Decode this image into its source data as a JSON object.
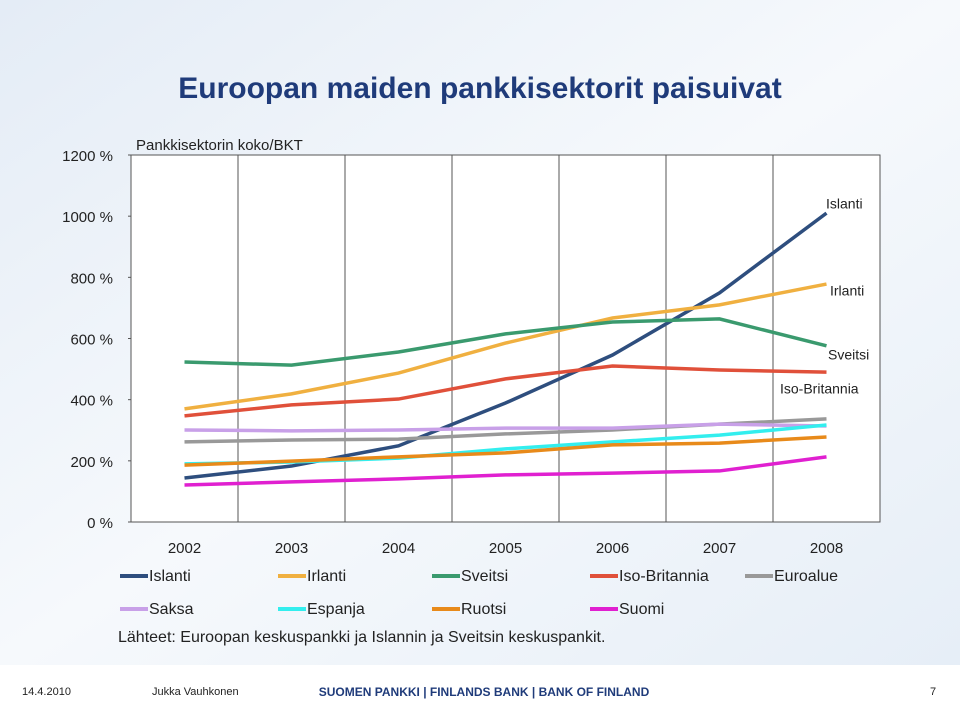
{
  "chart_data": {
    "type": "line",
    "title": "Euroopan maiden pankkisektorit paisuivat",
    "subtitle": "Pankkisektorin koko/BKT",
    "categories": [
      "2002",
      "2003",
      "2004",
      "2005",
      "2006",
      "2007",
      "2008"
    ],
    "ylim": [
      0,
      1200
    ],
    "yticks": [
      {
        "value": 0,
        "label": "0 %"
      },
      {
        "value": 200,
        "label": "200 %"
      },
      {
        "value": 400,
        "label": "400 %"
      },
      {
        "value": 600,
        "label": "600 %"
      },
      {
        "value": 800,
        "label": "800 %"
      },
      {
        "value": 1000,
        "label": "1000 %"
      },
      {
        "value": 1200,
        "label": "1200 %"
      }
    ],
    "series": [
      {
        "name": "Islanti",
        "color": "#2e4e7e",
        "values": [
          144,
          183,
          249,
          389,
          546,
          749,
          1010
        ]
      },
      {
        "name": "Irlanti",
        "color": "#f0b040",
        "values": [
          370,
          419,
          487,
          585,
          667,
          710,
          778
        ]
      },
      {
        "name": "Sveitsi",
        "color": "#3a9a6e",
        "values": [
          523,
          513,
          556,
          615,
          654,
          664,
          576
        ]
      },
      {
        "name": "Iso-Britannia",
        "color": "#e0503a",
        "values": [
          347,
          383,
          402,
          468,
          510,
          497,
          490
        ]
      },
      {
        "name": "Euroalue",
        "color": "#999999",
        "values": [
          262,
          268,
          271,
          288,
          301,
          320,
          337
        ]
      },
      {
        "name": "Saksa",
        "color": "#c8a0e8",
        "values": [
          301,
          298,
          301,
          307,
          307,
          320,
          314
        ]
      },
      {
        "name": "Espanja",
        "color": "#33eeee",
        "values": [
          190,
          196,
          209,
          239,
          262,
          284,
          317
        ]
      },
      {
        "name": "Ruotsi",
        "color": "#e88a1a",
        "values": [
          186,
          199,
          213,
          226,
          252,
          258,
          278
        ]
      },
      {
        "name": "Suomi",
        "color": "#e020d0",
        "values": [
          121,
          131,
          141,
          154,
          160,
          167,
          213
        ]
      }
    ],
    "annotations": [
      "Islanti",
      "Irlanti",
      "Sveitsi",
      "Iso-Britannia"
    ],
    "source": "Lähteet: Euroopan keskuspankki ja Islannin ja Sveitsin keskuspankit."
  },
  "footer": {
    "date": "14.4.2010",
    "author": "Jukka Vauhkonen",
    "organization": "SUOMEN PANKKI | FINLANDS BANK | BANK OF FINLAND",
    "page": "7"
  }
}
